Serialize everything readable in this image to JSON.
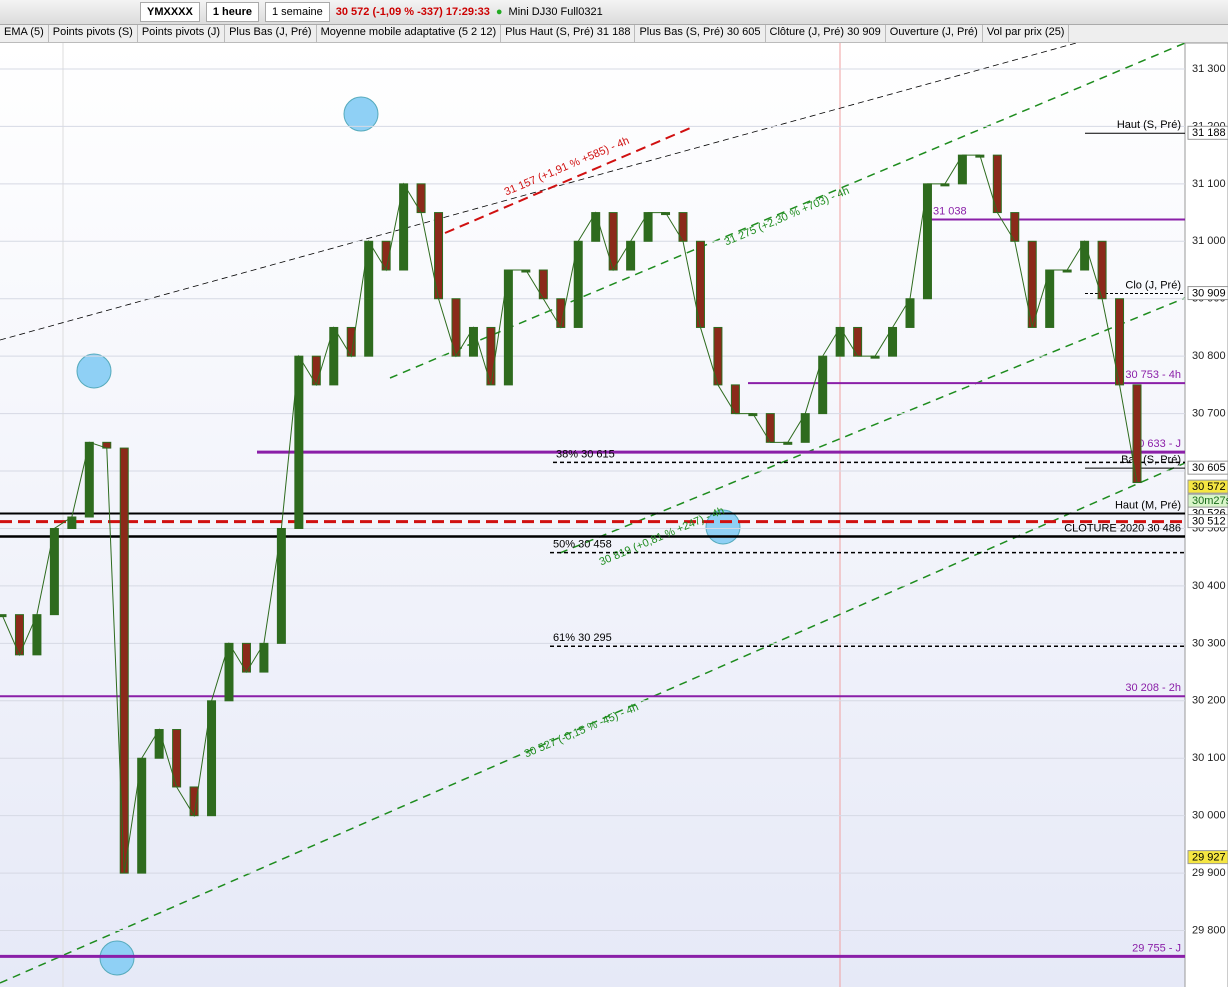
{
  "toolbar": {
    "symbol": "YMXXXX",
    "interval": "1 heure",
    "range": "1 semaine",
    "quote": "30 572 (-1,09 % -337) 17:29:33",
    "instrument": "Mini DJ30 Full0321"
  },
  "indicators": [
    "EMA (5)",
    "Points pivots (S)",
    "Points pivots (J)",
    "Plus Bas (J, Pré)",
    "Moyenne mobile adaptative (5 2 12)",
    "Plus Haut (S, Pré) 31 188",
    "Plus Bas (S, Pré) 30 605",
    "Clôture (J, Pré) 30 909",
    "Ouverture (J, Pré)",
    "Vol par prix (25)"
  ],
  "chart": {
    "type": "line",
    "ylim": [
      29700,
      31340
    ],
    "yticks": [
      {
        "value": 31300,
        "label": "31 300"
      },
      {
        "value": 31200,
        "label": "31 200"
      },
      {
        "value": 31100,
        "label": "31 100"
      },
      {
        "value": 31000,
        "label": "31 000"
      },
      {
        "value": 30900,
        "label": "30 900"
      },
      {
        "value": 30800,
        "label": "30 800"
      },
      {
        "value": 30700,
        "label": "30 700"
      },
      {
        "value": 30600,
        "label": "30 600"
      },
      {
        "value": 30500,
        "label": "30 500"
      },
      {
        "value": 30400,
        "label": "30 400"
      },
      {
        "value": 30300,
        "label": "30 300"
      },
      {
        "value": 30200,
        "label": "30 200"
      },
      {
        "value": 30100,
        "label": "30 100"
      },
      {
        "value": 30000,
        "label": "30 000"
      },
      {
        "value": 29900,
        "label": "29 900"
      },
      {
        "value": 29800,
        "label": "29 800"
      }
    ],
    "price_tags": [
      {
        "value": 31188,
        "label": "31 188",
        "color": "#ffffff"
      },
      {
        "value": 30909,
        "label": "30 909",
        "color": "#ffffff"
      },
      {
        "value": 30605,
        "label": "30 605",
        "color": "#ffffff"
      },
      {
        "value": 30572,
        "label": "30 572",
        "color": "#f5e642"
      },
      {
        "value": 30526,
        "label": "30 526",
        "color": "#ffffff"
      },
      {
        "value": 30512,
        "label": "30 512",
        "color": "#ffffff"
      },
      {
        "value": 29927,
        "label": "29 927",
        "color": "#f5e642"
      }
    ],
    "countdown": "30m27s",
    "series": [
      {
        "name": "YMXXXX",
        "color": "#2e6b1e",
        "values": [
          30350,
          30280,
          30350,
          30500,
          30520,
          30650,
          30640,
          29900,
          30100,
          30150,
          30050,
          30000,
          30200,
          30300,
          30250,
          30300,
          30500,
          30800,
          30750,
          30850,
          30800,
          31000,
          30950,
          31100,
          31050,
          30900,
          30800,
          30850,
          30750,
          30950,
          30950,
          30900,
          30850,
          31000,
          31050,
          30950,
          31000,
          31050,
          31050,
          31000,
          30850,
          30750,
          30700,
          30700,
          30650,
          30650,
          30700,
          30800,
          30850,
          30800,
          30800,
          30850,
          30900,
          31100,
          31100,
          31150,
          31150,
          31050,
          31000,
          30850,
          30950,
          30950,
          31000,
          30900,
          30750,
          30580
        ]
      }
    ],
    "levels": [
      {
        "label": "Haut (S, Pré)",
        "value": 31188,
        "color": "#000000"
      },
      {
        "label": "31 038",
        "value": 31038,
        "color": "#8a1fa8"
      },
      {
        "label": "Clo (J, Pré)",
        "value": 30909,
        "color": "#000000"
      },
      {
        "label": "30 753 - 4h",
        "value": 30753,
        "color": "#8a1fa8"
      },
      {
        "label": "30 633 - J",
        "value": 30633,
        "color": "#8a1fa8"
      },
      {
        "label": "38% 30 615",
        "value": 30615,
        "color": "#000000"
      },
      {
        "label": "Bas (S, Pré)",
        "value": 30605,
        "color": "#000000"
      },
      {
        "label": "Haut (M, Pré)",
        "value": 30526,
        "color": "#000000"
      },
      {
        "value": 30512,
        "color": "#d01010"
      },
      {
        "label": "CLOTURE 2020 30 486",
        "value": 30486,
        "color": "#000000"
      },
      {
        "label": "50% 30 458",
        "value": 30458,
        "color": "#000000"
      },
      {
        "label": "61% 30 295",
        "value": 30295,
        "color": "#000000"
      },
      {
        "label": "30 208 - 2h",
        "value": 30208,
        "color": "#8a1fa8"
      },
      {
        "label": "29 755 - J",
        "value": 29755,
        "color": "#8a1fa8"
      }
    ],
    "trend_labels": [
      "31 157 (+1,91 % +585) - 4h",
      "31 275 (+2,30 % +703) - 4h",
      "30 819 (+0,81 % +247) - 4h",
      "30 527 (-0,15 % -45) - 4h"
    ]
  }
}
